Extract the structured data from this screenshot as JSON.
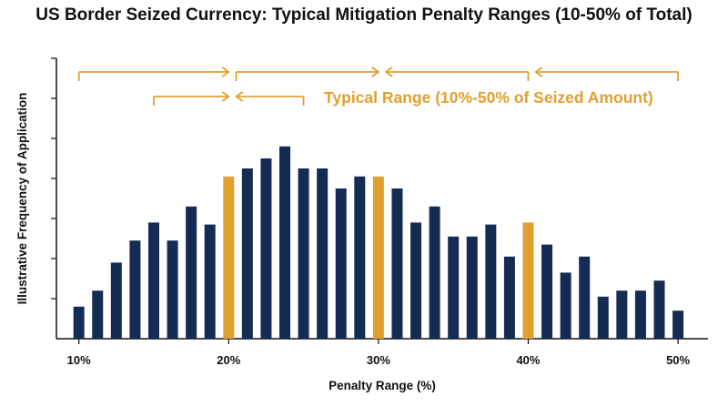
{
  "title": "US Border Seized Currency: Typical Mitigation Penalty Ranges (10-50% of Total)",
  "colors": {
    "navy": "#142c54",
    "gold": "#e0a030",
    "axis": "#111111"
  },
  "chart_data": {
    "type": "bar",
    "title": "US Border Seized Currency: Typical Mitigation Penalty Ranges (10-50% of Total)",
    "xlabel": "Penalty Range (%)",
    "ylabel": "Illustrative Frequency of Application",
    "xlim": [
      8.5,
      52
    ],
    "ylim": [
      0,
      7
    ],
    "x_ticks": [
      10,
      20,
      30,
      40,
      50
    ],
    "x_tick_labels": [
      "10%",
      "20%",
      "30%",
      "40%",
      "50%"
    ],
    "y_tick_values": [
      1,
      2,
      3,
      4,
      5,
      6,
      7
    ],
    "grid": false,
    "series": [
      {
        "x": [
          10,
          11.25,
          12.5,
          13.75,
          15,
          16.25,
          17.5,
          18.75,
          20,
          21.25,
          22.5,
          23.75,
          25,
          26.25,
          27.5,
          28.75,
          30,
          31.25,
          32.5,
          33.75,
          35,
          36.25,
          37.5,
          38.75,
          40,
          41.25,
          42.5,
          43.75,
          45,
          46.25,
          47.5,
          48.75,
          50
        ],
        "values": [
          0.8,
          1.2,
          1.9,
          2.45,
          2.9,
          2.45,
          3.3,
          2.85,
          4.05,
          4.25,
          4.5,
          4.8,
          4.25,
          4.25,
          3.75,
          4.05,
          4.05,
          3.75,
          2.9,
          3.3,
          2.55,
          2.55,
          2.85,
          2.05,
          2.9,
          2.35,
          1.65,
          2.05,
          1.05,
          1.2,
          1.2,
          1.45,
          0.7
        ],
        "highlight": [
          false,
          false,
          false,
          false,
          false,
          false,
          false,
          false,
          true,
          false,
          false,
          false,
          false,
          false,
          false,
          false,
          true,
          false,
          false,
          false,
          false,
          false,
          false,
          false,
          true,
          false,
          false,
          false,
          false,
          false,
          false,
          false,
          false
        ]
      }
    ],
    "annotations": [
      {
        "text": "Typical Range (10%-50% of Seized Amount)"
      }
    ],
    "range_brackets": [
      {
        "from": 10,
        "to": 20,
        "arrow_at": "to",
        "level": 1
      },
      {
        "from": 20.5,
        "to": 30,
        "arrow_at": "to",
        "level": 1
      },
      {
        "from": 30.5,
        "to": 40,
        "arrow_at": "from",
        "level": 1
      },
      {
        "from": 40.5,
        "to": 50,
        "arrow_at": "from",
        "level": 1
      },
      {
        "from": 15,
        "to": 20,
        "arrow_at": "to",
        "level": 2
      },
      {
        "from": 20.5,
        "to": 25,
        "arrow_at": "from",
        "level": 2
      }
    ]
  }
}
